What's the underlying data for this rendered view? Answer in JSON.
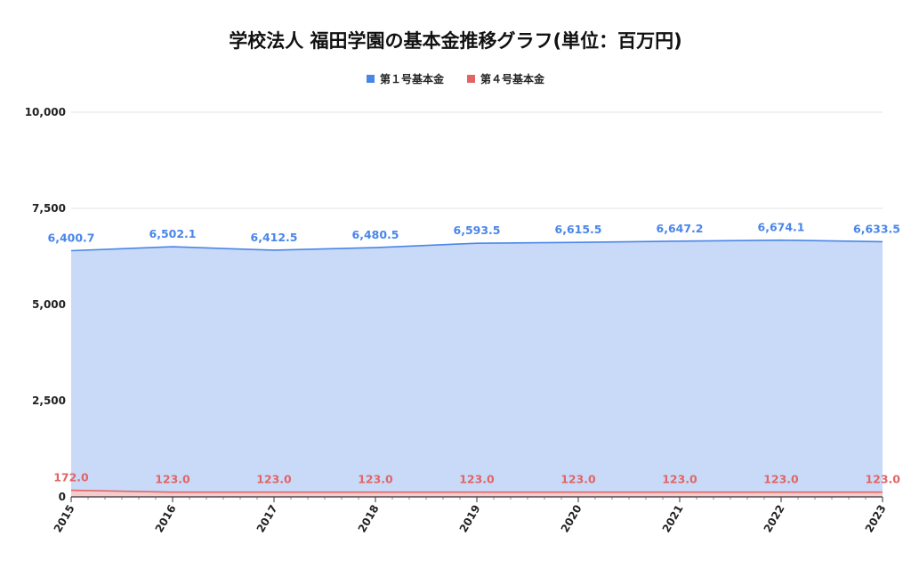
{
  "chart_data": {
    "type": "area",
    "title": "学校法人 福田学園の基本金推移グラフ(単位：百万円)",
    "xlabel": "",
    "ylabel": "",
    "categories": [
      "2015",
      "2016",
      "2017",
      "2018",
      "2019",
      "2020",
      "2021",
      "2022",
      "2023"
    ],
    "ylim": [
      0,
      10000
    ],
    "yticks": [
      0,
      2500,
      5000,
      7500,
      10000
    ],
    "ytick_labels": [
      "0",
      "2,500",
      "5,000",
      "7,500",
      "10,000"
    ],
    "grid": true,
    "legend_position": "top-center",
    "series": [
      {
        "name": "第１号基本金",
        "color": "#4a86e8",
        "fill": "#c9daf8",
        "values": [
          6400.7,
          6502.1,
          6412.5,
          6480.5,
          6593.5,
          6615.5,
          6647.2,
          6674.1,
          6633.5
        ],
        "labels": [
          "6,400.7",
          "6,502.1",
          "6,412.5",
          "6,480.5",
          "6,593.5",
          "6,615.5",
          "6,647.2",
          "6,674.1",
          "6,633.5"
        ]
      },
      {
        "name": "第４号基本金",
        "color": "#e06666",
        "fill": "#f4cccc",
        "values": [
          172.0,
          123.0,
          123.0,
          123.0,
          123.0,
          123.0,
          123.0,
          123.0,
          123.0
        ],
        "labels": [
          "172.0",
          "123.0",
          "123.0",
          "123.0",
          "123.0",
          "123.0",
          "123.0",
          "123.0",
          "123.0"
        ]
      }
    ]
  }
}
